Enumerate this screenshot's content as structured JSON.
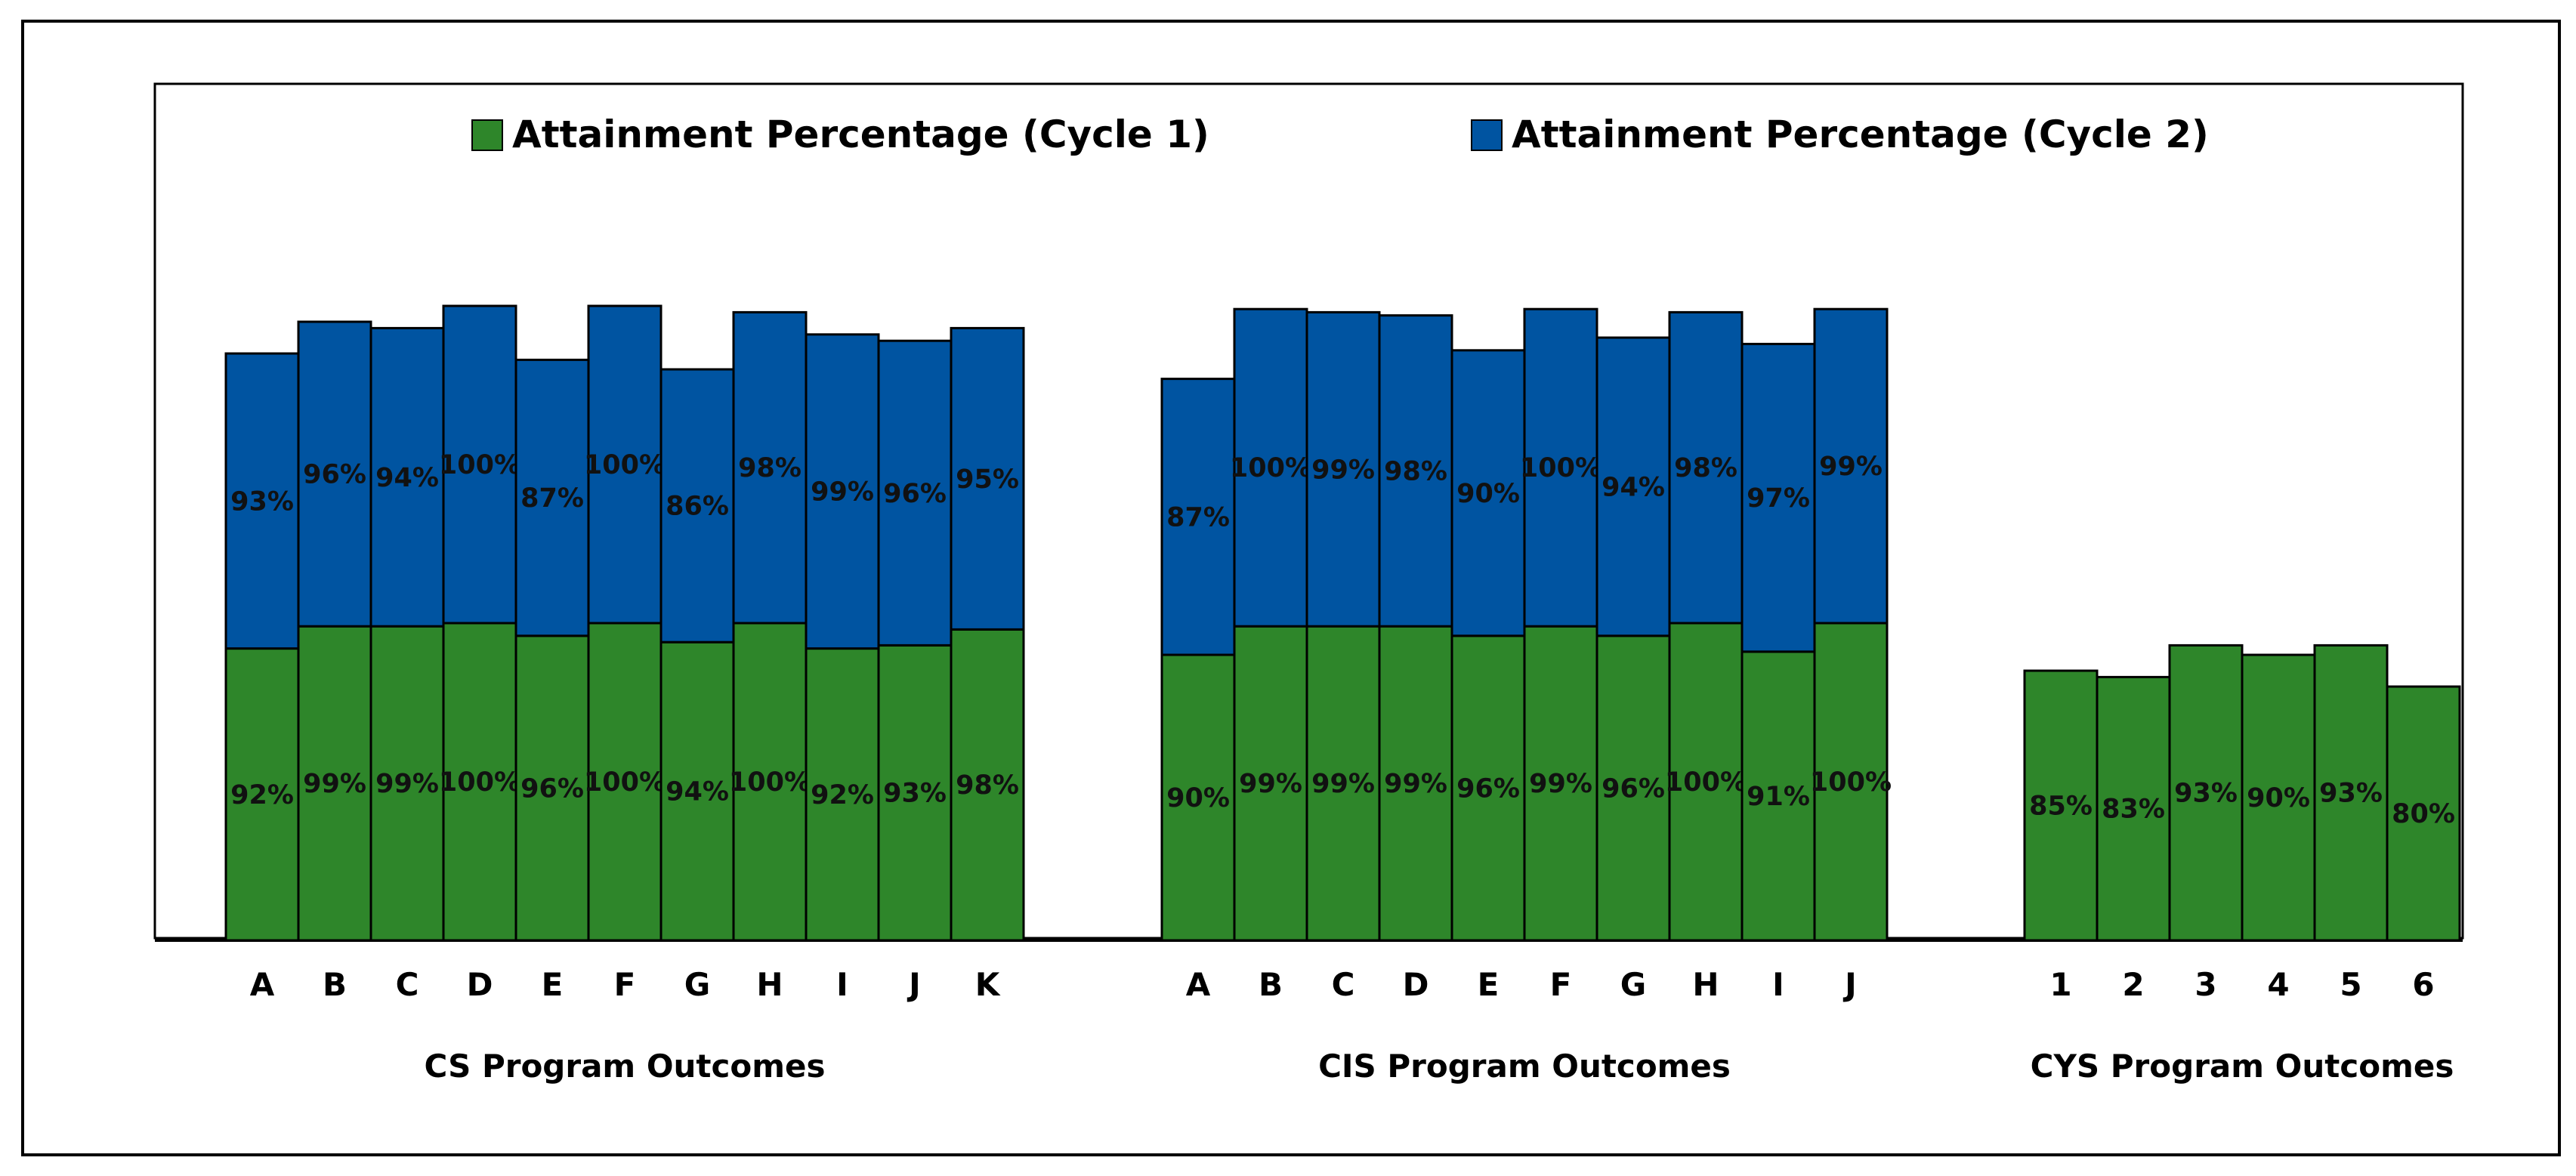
{
  "chart_data": {
    "type": "bar",
    "stacked": true,
    "legend_position": "top",
    "grid": false,
    "ylim": [
      0,
      250
    ],
    "colors": {
      "cycle1": "#2e862a",
      "cycle2": "#0054a1"
    },
    "legend": [
      {
        "label": "Attainment Percentage (Cycle 1)",
        "color": "#2e862a"
      },
      {
        "label": "Attainment Percentage (Cycle 2)",
        "color": "#0054a1"
      }
    ],
    "groups": [
      {
        "name": "CS Program Outcomes",
        "categories": [
          "A",
          "B",
          "C",
          "D",
          "E",
          "F",
          "G",
          "H",
          "I",
          "J",
          "K"
        ],
        "cycle1": [
          92,
          99,
          99,
          100,
          96,
          100,
          94,
          100,
          92,
          93,
          98
        ],
        "cycle1_labels": [
          "92%",
          "99%",
          "99%",
          "100%",
          "96%",
          "100%",
          "94%",
          "100%",
          "92%",
          "93%",
          "98%"
        ],
        "cycle2": [
          93,
          96,
          94,
          100,
          87,
          100,
          86,
          98,
          99,
          96,
          95
        ],
        "cycle2_labels": [
          "93%",
          "96%",
          "94%",
          "100%",
          "87%",
          "100%",
          "86%",
          "98%",
          "99%",
          "96%",
          "95%"
        ]
      },
      {
        "name": "CIS Program Outcomes",
        "categories": [
          "A",
          "B",
          "C",
          "D",
          "E",
          "F",
          "G",
          "H",
          "I",
          "J"
        ],
        "cycle1": [
          90,
          99,
          99,
          99,
          96,
          99,
          96,
          100,
          91,
          100
        ],
        "cycle1_labels": [
          "90%",
          "99%",
          "99%",
          "99%",
          "96%",
          "99%",
          "96%",
          "100%",
          "91%",
          "100%"
        ],
        "cycle2": [
          87,
          100,
          99,
          98,
          90,
          100,
          94,
          98,
          97,
          99
        ],
        "cycle2_labels": [
          "87%",
          "100%",
          "99%",
          "98%",
          "90%",
          "100%",
          "94%",
          "98%",
          "97%",
          "99%"
        ]
      },
      {
        "name": "CYS Program Outcomes",
        "categories": [
          "1",
          "2",
          "3",
          "4",
          "5",
          "6"
        ],
        "cycle1": [
          85,
          83,
          93,
          90,
          93,
          80
        ],
        "cycle1_labels": [
          "85%",
          "83%",
          "93%",
          "90%",
          "93%",
          "80%"
        ],
        "cycle2": [],
        "cycle2_labels": []
      }
    ]
  }
}
